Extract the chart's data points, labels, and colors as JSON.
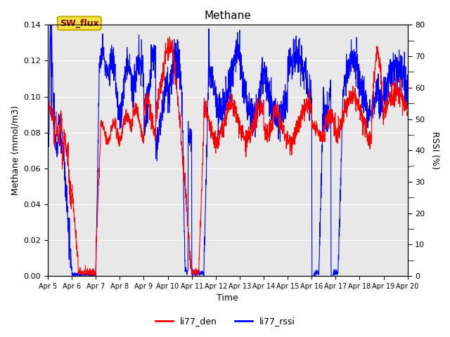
{
  "title": "Methane",
  "ylabel_left": "Methane (mmol/m3)",
  "ylabel_right": "RSSI (%)",
  "xlabel": "Time",
  "ylim_left": [
    0,
    0.14
  ],
  "ylim_right": [
    0,
    80
  ],
  "annotation_text": "SW_flux",
  "legend": [
    "li77_den",
    "li77_rssi"
  ],
  "line_colors": [
    "red",
    "blue"
  ],
  "bg_color": "#e8e8e8",
  "fig_bg": "#ffffff",
  "xtick_labels": [
    "Apr 5",
    "Apr 6",
    "Apr 7",
    "Apr 8",
    "Apr 9",
    "Apr 10",
    "Apr 11",
    "Apr 12",
    "Apr 13",
    "Apr 14",
    "Apr 15",
    "Apr 16",
    "Apr 17",
    "Apr 18",
    "Apr 19",
    "Apr 20"
  ],
  "yticks_left": [
    0.0,
    0.02,
    0.04,
    0.06,
    0.08,
    0.1,
    0.12,
    0.14
  ],
  "yticks_right_major": [
    0,
    10,
    20,
    30,
    40,
    50,
    60,
    70,
    80
  ],
  "yticks_right_minor": [
    5,
    15,
    25,
    35,
    45,
    55,
    65,
    75
  ]
}
